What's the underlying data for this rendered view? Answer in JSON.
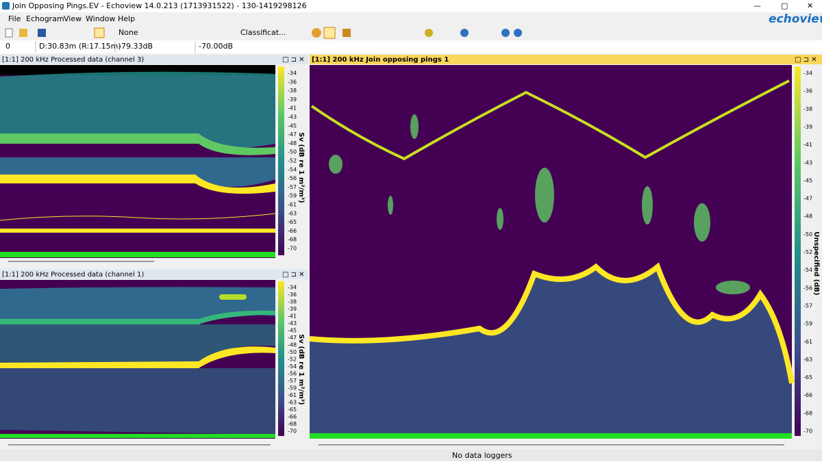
{
  "window": {
    "title": "Join Opposing Pings.EV - Echoview 14.0.213 (1713931522) - 130-1419298126",
    "logo": "echoview"
  },
  "menu": [
    "File",
    "Echogram",
    "View",
    "Window",
    "Help"
  ],
  "toolbar": {
    "line_style": "None",
    "classification": "Classificat..."
  },
  "status_row": [
    "0",
    "D:30.83m (R:17.15m)",
    "-79.33dB",
    "-70.00dB"
  ],
  "panels": [
    {
      "title": "[1:1] 200 kHz Processed data (channel 3)",
      "axis_label": "Sv (dB re 1 m²/m³)",
      "scale": [
        "-34",
        "-36",
        "-38",
        "-39",
        "-41",
        "-43",
        "-45",
        "-47",
        "-48",
        "-50",
        "-52",
        "-54",
        "-56",
        "-57",
        "-59",
        "-61",
        "-63",
        "-65",
        "-66",
        "-68",
        "-70"
      ]
    },
    {
      "title": "[1:1] 200 kHz Processed data (channel 1)",
      "axis_label": "Sv (dB re 1 m²/m³)",
      "scale": [
        "-34",
        "-36",
        "-38",
        "-39",
        "-41",
        "-43",
        "-45",
        "-47",
        "-48",
        "-50",
        "-52",
        "-54",
        "-56",
        "-57",
        "-59",
        "-61",
        "-63",
        "-65",
        "-66",
        "-68",
        "-70"
      ]
    },
    {
      "title": "[1:1] 200 kHz Join opposing pings 1",
      "axis_label": "Unspecified (dB)",
      "scale": [
        "-34",
        "-36",
        "-38",
        "-39",
        "-41",
        "-43",
        "-45",
        "-47",
        "-48",
        "-50",
        "-52",
        "-54",
        "-56",
        "-57",
        "-59",
        "-61",
        "-63",
        "-65",
        "-66",
        "-68",
        "-70"
      ]
    }
  ],
  "status_bar": "No data loggers"
}
